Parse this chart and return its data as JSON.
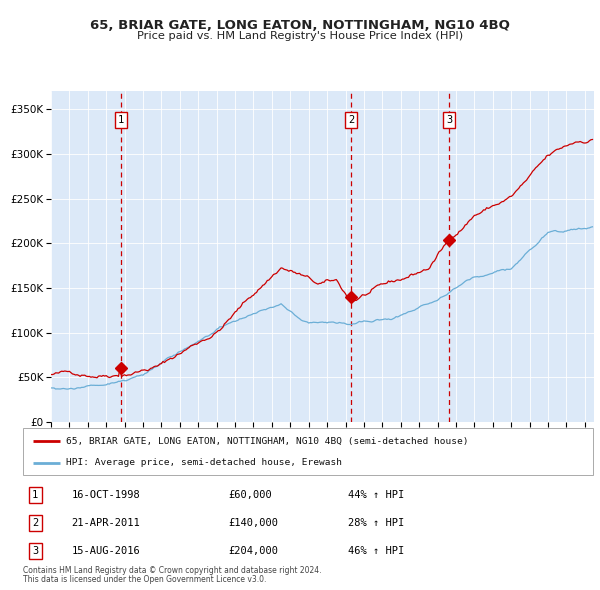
{
  "title": "65, BRIAR GATE, LONG EATON, NOTTINGHAM, NG10 4BQ",
  "subtitle": "Price paid vs. HM Land Registry's House Price Index (HPI)",
  "legend_property": "65, BRIAR GATE, LONG EATON, NOTTINGHAM, NG10 4BQ (semi-detached house)",
  "legend_hpi": "HPI: Average price, semi-detached house, Erewash",
  "footer1": "Contains HM Land Registry data © Crown copyright and database right 2024.",
  "footer2": "This data is licensed under the Open Government Licence v3.0.",
  "sales": [
    {
      "num": 1,
      "date": "16-OCT-1998",
      "price": 60000,
      "hpi_pct": "44%",
      "x_year": 1998.79
    },
    {
      "num": 2,
      "date": "21-APR-2011",
      "price": 140000,
      "hpi_pct": "28%",
      "x_year": 2011.3
    },
    {
      "num": 3,
      "date": "15-AUG-2016",
      "price": 204000,
      "hpi_pct": "46%",
      "x_year": 2016.62
    }
  ],
  "background_color": "#dce9f8",
  "hpi_color": "#6baed6",
  "property_color": "#cc0000",
  "vline_color": "#cc0000",
  "grid_color": "#ffffff",
  "ylim": [
    0,
    370000
  ],
  "xlim_start": 1995.0,
  "xlim_end": 2024.5,
  "table_rows": [
    [
      1,
      "16-OCT-1998",
      "£60,000",
      "44% ↑ HPI"
    ],
    [
      2,
      "21-APR-2011",
      "£140,000",
      "28% ↑ HPI"
    ],
    [
      3,
      "15-AUG-2016",
      "£204,000",
      "46% ↑ HPI"
    ]
  ]
}
